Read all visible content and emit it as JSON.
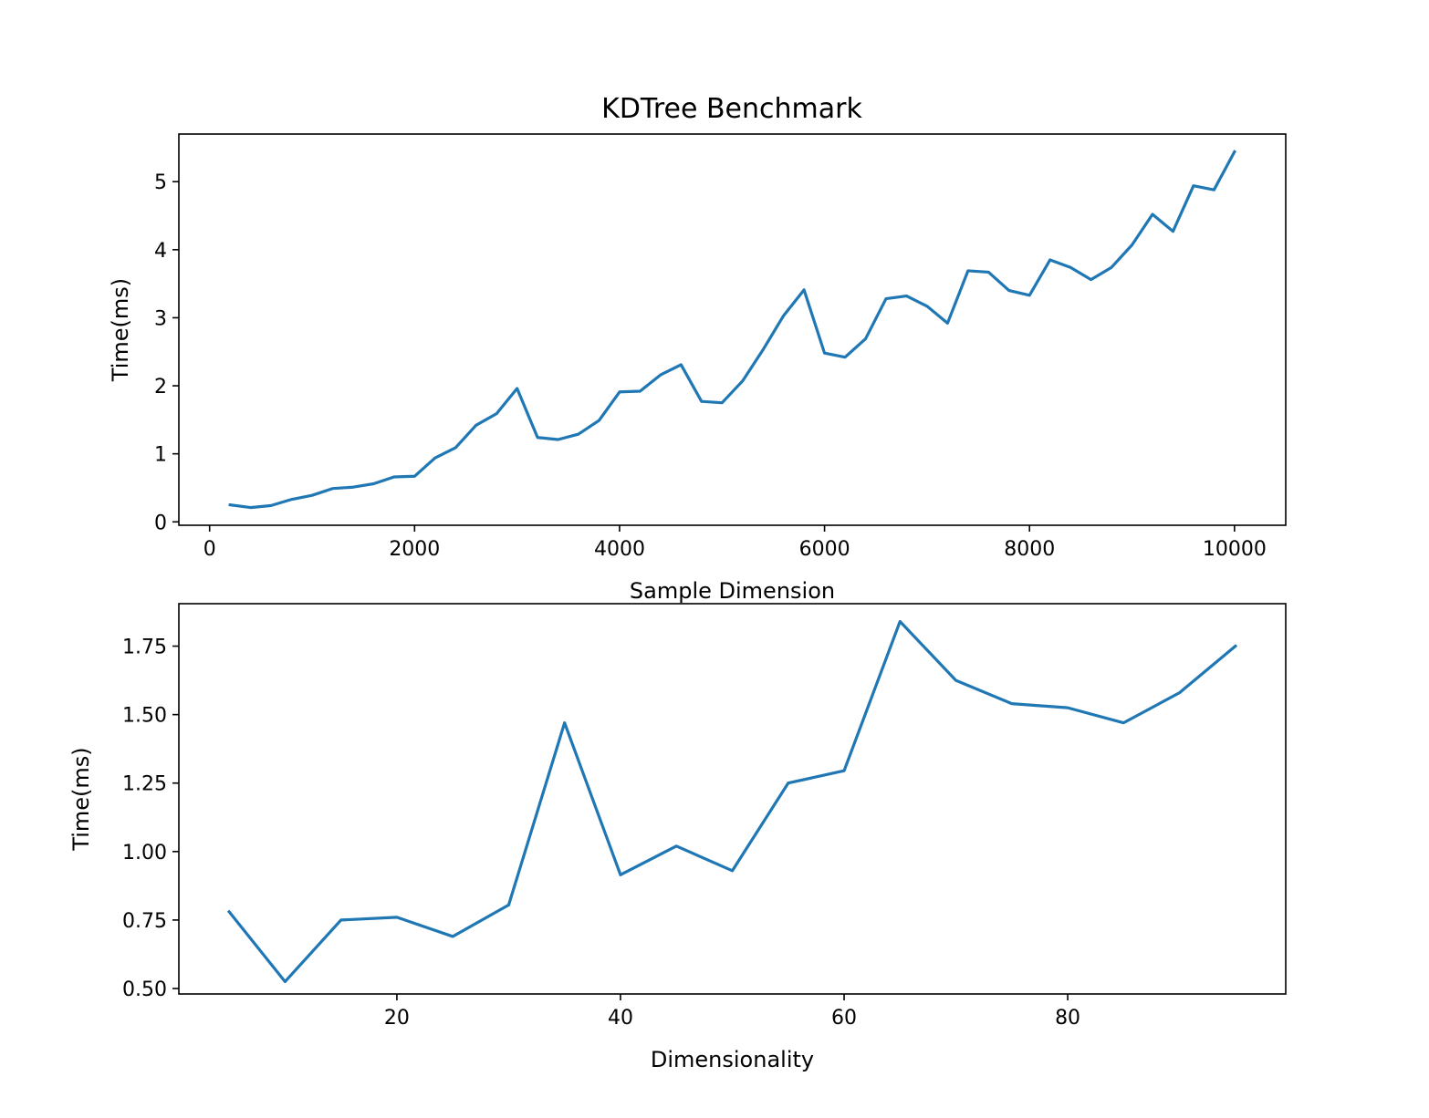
{
  "figure_title": "KDTree Benchmark",
  "colors": {
    "series": "#1f77b4"
  },
  "chart_data": [
    {
      "type": "line",
      "title": "KDTree Benchmark",
      "xlabel": "Sample Dimension",
      "ylabel": "Time(ms)",
      "xlim": [
        -300,
        10500
      ],
      "ylim": [
        -0.05,
        5.7
      ],
      "xticks": [
        0,
        2000,
        4000,
        6000,
        8000,
        10000
      ],
      "xtick_labels": [
        "0",
        "2000",
        "4000",
        "6000",
        "8000",
        "10000"
      ],
      "yticks": [
        0,
        1,
        2,
        3,
        4,
        5
      ],
      "ytick_labels": [
        "0",
        "1",
        "2",
        "3",
        "4",
        "5"
      ],
      "grid": false,
      "series": [
        {
          "x": [
            200,
            400,
            600,
            800,
            1000,
            1200,
            1400,
            1600,
            1800,
            2000,
            2200,
            2400,
            2600,
            2800,
            3000,
            3200,
            3400,
            3600,
            3800,
            4000,
            4200,
            4400,
            4600,
            4800,
            5000,
            5200,
            5400,
            5600,
            5800,
            6000,
            6200,
            6400,
            6600,
            6800,
            7000,
            7200,
            7400,
            7600,
            7800,
            8000,
            8200,
            8400,
            8600,
            8800,
            9000,
            9200,
            9400,
            9600,
            9800,
            10000
          ],
          "values": [
            0.25,
            0.21,
            0.24,
            0.33,
            0.39,
            0.49,
            0.51,
            0.56,
            0.66,
            0.67,
            0.94,
            1.09,
            1.42,
            1.59,
            1.96,
            1.24,
            1.21,
            1.29,
            1.49,
            1.91,
            1.92,
            2.16,
            2.31,
            1.77,
            1.75,
            2.07,
            2.53,
            3.03,
            3.41,
            2.48,
            2.42,
            2.69,
            3.28,
            3.32,
            3.17,
            2.92,
            3.69,
            3.67,
            3.4,
            3.33,
            3.85,
            3.74,
            3.56,
            3.74,
            4.07,
            4.52,
            4.27,
            4.94,
            4.88,
            5.44
          ]
        }
      ]
    },
    {
      "type": "line",
      "title": "",
      "xlabel": "Dimensionality",
      "ylabel": "Time(ms)",
      "xlim": [
        0.5,
        99.5
      ],
      "ylim": [
        0.48,
        1.905
      ],
      "xticks": [
        20,
        40,
        60,
        80
      ],
      "xtick_labels": [
        "20",
        "40",
        "60",
        "80"
      ],
      "yticks": [
        0.5,
        0.75,
        1.0,
        1.25,
        1.5,
        1.75
      ],
      "ytick_labels": [
        "0.50",
        "0.75",
        "1.00",
        "1.25",
        "1.50",
        "1.75"
      ],
      "grid": false,
      "series": [
        {
          "x": [
            5,
            10,
            15,
            20,
            25,
            30,
            35,
            40,
            45,
            50,
            55,
            60,
            65,
            70,
            75,
            80,
            85,
            90,
            95
          ],
          "values": [
            0.78,
            0.525,
            0.75,
            0.76,
            0.69,
            0.805,
            1.47,
            0.915,
            1.02,
            0.93,
            1.25,
            1.295,
            1.84,
            1.625,
            1.54,
            1.525,
            1.47,
            1.58,
            1.75
          ]
        }
      ]
    }
  ]
}
